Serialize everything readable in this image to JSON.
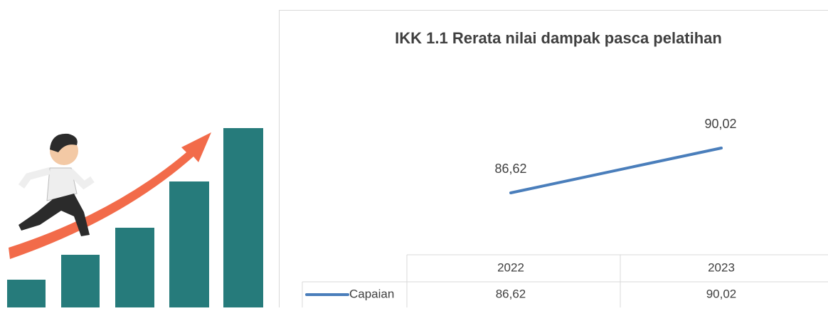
{
  "chart_data": {
    "type": "line",
    "title": "IKK 1.1 Rerata  nilai dampak pasca pelatihan",
    "categories": [
      "2022",
      "2023"
    ],
    "series": [
      {
        "name": "Capaian",
        "color": "#4a7ebb",
        "values": [
          86.62,
          90.02
        ],
        "value_labels": [
          "86,62",
          "90,02"
        ]
      }
    ]
  }
}
